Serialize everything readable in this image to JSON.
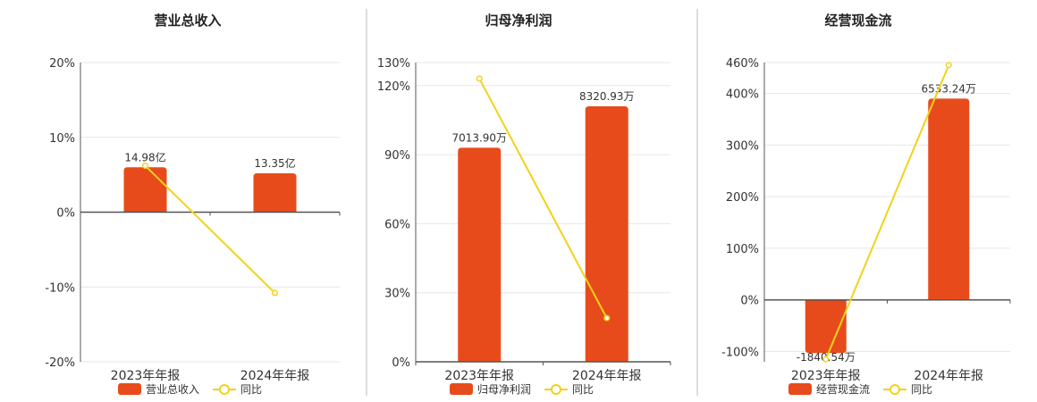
{
  "colors": {
    "bar": "#e84b1b",
    "line": "#f2d21a",
    "grid": "#e6e6e6",
    "axis": "#555555",
    "divider": "#bbbbbb"
  },
  "chart_data": [
    {
      "type": "bar",
      "title": "营业总收入",
      "categories": [
        "2023年年报",
        "2024年年报"
      ],
      "series": [
        {
          "name": "营业总收入",
          "type": "bar",
          "values": [
            6.0,
            5.2
          ],
          "labels": [
            "14.98亿",
            "13.35亿"
          ]
        },
        {
          "name": "同比",
          "type": "line",
          "values": [
            6.2,
            -10.8
          ]
        }
      ],
      "yticks": [
        20,
        10,
        0,
        -10,
        -20
      ],
      "ytick_labels": [
        "20%",
        "10%",
        "0%",
        "-10%",
        "-20%"
      ],
      "ylim": [
        -20,
        20
      ],
      "grid": true,
      "legend": "bottom"
    },
    {
      "type": "bar",
      "title": "归母净利润",
      "categories": [
        "2023年年报",
        "2024年年报"
      ],
      "series": [
        {
          "name": "归母净利润",
          "type": "bar",
          "values": [
            93,
            111
          ],
          "labels": [
            "7013.90万",
            "8320.93万"
          ]
        },
        {
          "name": "同比",
          "type": "line",
          "values": [
            123,
            19
          ]
        }
      ],
      "yticks": [
        130,
        120,
        90,
        60,
        30,
        0
      ],
      "ytick_labels": [
        "130%",
        "120%",
        "90%",
        "60%",
        "30%",
        "0%"
      ],
      "ylim": [
        0,
        130
      ],
      "grid": true,
      "legend": "bottom"
    },
    {
      "type": "bar",
      "title": "经营现金流",
      "categories": [
        "2023年年报",
        "2024年年报"
      ],
      "series": [
        {
          "name": "经营现金流",
          "type": "bar",
          "values": [
            -103,
            390
          ],
          "labels": [
            "-1840.54万",
            "6533.24万"
          ]
        },
        {
          "name": "同比",
          "type": "line",
          "values": [
            -115,
            455
          ]
        }
      ],
      "yticks": [
        460,
        400,
        300,
        200,
        100,
        0,
        -100
      ],
      "ytick_labels": [
        "460%",
        "400%",
        "300%",
        "200%",
        "100%",
        "0%",
        "-100%"
      ],
      "ylim": [
        -120,
        460
      ],
      "grid": true,
      "legend": "bottom"
    }
  ]
}
